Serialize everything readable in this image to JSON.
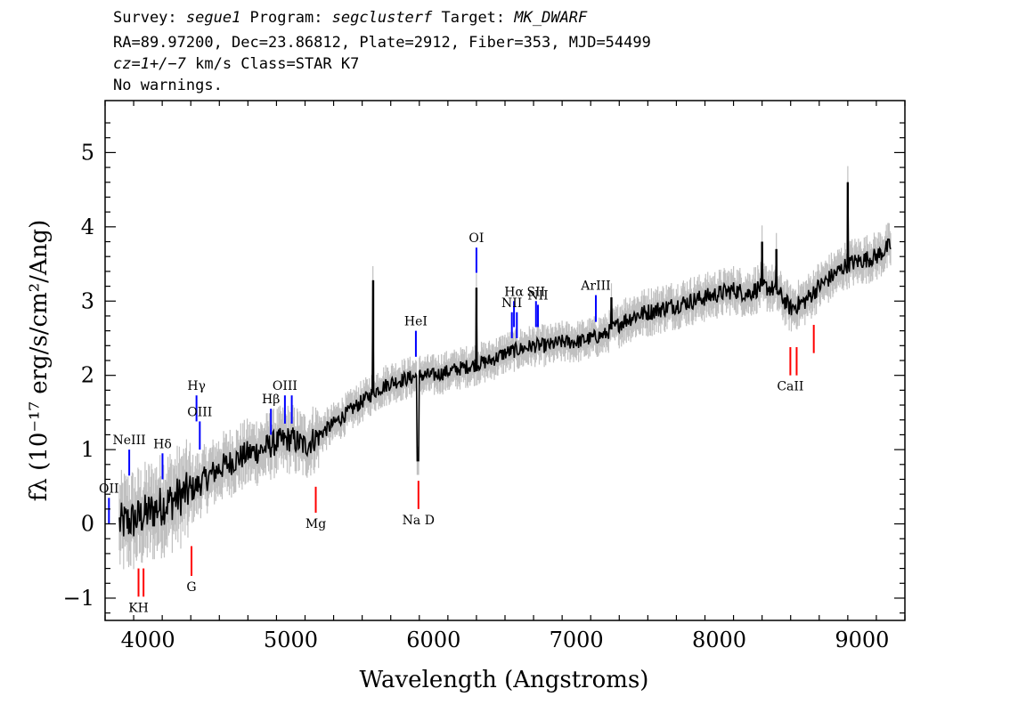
{
  "header": {
    "line1": {
      "survey_prefix": "Survey: ",
      "survey": "segue1",
      "program_prefix": " Program: ",
      "program": "segclusterf",
      "target_prefix": " Target: ",
      "target": "MK_DWARF"
    },
    "line2": "RA=89.97200, Dec=23.86812, Plate=2912, Fiber=353, MJD=54499",
    "line3": {
      "cz": "cz=1+/−7",
      "rest": " km/s Class=STAR K7"
    },
    "line4": "No warnings."
  },
  "chart_data": {
    "type": "line",
    "xlabel": "Wavelength (Angstroms)",
    "ylabel": "fλ (10⁻¹⁷ erg/s/cm²/Ang)",
    "xlim": [
      3700,
      9300
    ],
    "ylim": [
      -1.3,
      5.7
    ],
    "x_ticks": [
      4000,
      5000,
      6000,
      7000,
      8000,
      9000
    ],
    "y_ticks": [
      -1,
      0,
      1,
      2,
      3,
      4,
      5
    ],
    "series": [
      {
        "style": "spectrum",
        "color": "#000000",
        "x": [
          3800,
          3900,
          4000,
          4100,
          4200,
          4300,
          4400,
          4500,
          4600,
          4700,
          4800,
          4900,
          5000,
          5100,
          5200,
          5300,
          5400,
          5500,
          5600,
          5700,
          5800,
          5900,
          6000,
          6100,
          6200,
          6300,
          6400,
          6500,
          6600,
          6700,
          6800,
          6900,
          7000,
          7100,
          7200,
          7300,
          7400,
          7500,
          7600,
          7700,
          7800,
          7900,
          8000,
          8100,
          8200,
          8300,
          8400,
          8500,
          8600,
          8700,
          8800,
          8900,
          9000,
          9100,
          9200
        ],
        "y": [
          0.0,
          0.05,
          0.15,
          0.25,
          0.35,
          0.45,
          0.6,
          0.75,
          0.85,
          0.95,
          1.0,
          1.1,
          1.15,
          1.05,
          1.2,
          1.35,
          1.5,
          1.65,
          1.8,
          1.9,
          1.95,
          2.0,
          2.0,
          2.05,
          2.1,
          2.15,
          2.2,
          2.3,
          2.35,
          2.4,
          2.4,
          2.45,
          2.45,
          2.5,
          2.55,
          2.7,
          2.8,
          2.85,
          2.9,
          2.95,
          3.0,
          3.05,
          3.1,
          3.15,
          3.1,
          3.2,
          3.15,
          2.9,
          3.0,
          3.2,
          3.35,
          3.5,
          3.55,
          3.6,
          3.75
        ]
      }
    ],
    "spikes": [
      {
        "x": 5577,
        "y": 3.28
      },
      {
        "x": 6300,
        "y": 3.18
      },
      {
        "x": 7245,
        "y": 3.05
      },
      {
        "x": 8300,
        "y": 3.8
      },
      {
        "x": 8400,
        "y": 3.7
      },
      {
        "x": 8900,
        "y": 4.6
      }
    ],
    "emission_lines": [
      {
        "label": "OII",
        "x": 3727,
        "y_bottom": 0.0,
        "y_top": 0.35
      },
      {
        "label": "NeIII",
        "x": 3869,
        "y_bottom": 0.65,
        "y_top": 1.0
      },
      {
        "label": "Hδ",
        "x": 4102,
        "y_bottom": 0.6,
        "y_top": 0.95
      },
      {
        "label": "Hγ",
        "x": 4340,
        "y_bottom": 1.38,
        "y_top": 1.73
      },
      {
        "label": "OIII",
        "x": 4363,
        "y_bottom": 1.0,
        "y_top": 1.38
      },
      {
        "label": "Hβ",
        "x": 4861,
        "y_bottom": 1.2,
        "y_top": 1.55
      },
      {
        "label": "OIII",
        "x": 4959,
        "y_bottom": 1.35,
        "y_top": 1.73
      },
      {
        "label": "",
        "x": 5007,
        "y_bottom": 1.35,
        "y_top": 1.73
      },
      {
        "label": "HeI",
        "x": 5876,
        "y_bottom": 2.25,
        "y_top": 2.6
      },
      {
        "label": "OI",
        "x": 6300,
        "y_bottom": 3.38,
        "y_top": 3.72
      },
      {
        "label": "NII",
        "x": 6548,
        "y_bottom": 2.5,
        "y_top": 2.85
      },
      {
        "label": "Hα",
        "x": 6563,
        "y_bottom": 2.65,
        "y_top": 3.0
      },
      {
        "label": "",
        "x": 6583,
        "y_bottom": 2.5,
        "y_top": 2.85
      },
      {
        "label": "SII",
        "x": 6717,
        "y_bottom": 2.65,
        "y_top": 3.0
      },
      {
        "label": "NII",
        "x": 6731,
        "y_bottom": 2.65,
        "y_top": 2.95
      },
      {
        "label": "ArIII",
        "x": 7136,
        "y_bottom": 2.72,
        "y_top": 3.08
      }
    ],
    "absorption_lines": [
      {
        "label": "KH",
        "x": 3934,
        "y_bottom": -0.98,
        "y_top": -0.6
      },
      {
        "label": "",
        "x": 3969,
        "y_bottom": -0.98,
        "y_top": -0.6
      },
      {
        "label": "G",
        "x": 4305,
        "y_bottom": -0.7,
        "y_top": -0.3
      },
      {
        "label": "Mg",
        "x": 5175,
        "y_bottom": 0.15,
        "y_top": 0.5
      },
      {
        "label": "Na D",
        "x": 5894,
        "y_bottom": 0.2,
        "y_top": 0.58
      },
      {
        "label": "CaII",
        "x": 8498,
        "y_bottom": 2.0,
        "y_top": 2.38
      },
      {
        "label": "",
        "x": 8542,
        "y_bottom": 2.0,
        "y_top": 2.38
      },
      {
        "label": "",
        "x": 8662,
        "y_bottom": 2.3,
        "y_top": 2.68
      }
    ],
    "colors": {
      "spectrum": "#000000",
      "error": "#c0c0c0",
      "emission": "#0000ff",
      "absorption": "#ff0000"
    }
  }
}
